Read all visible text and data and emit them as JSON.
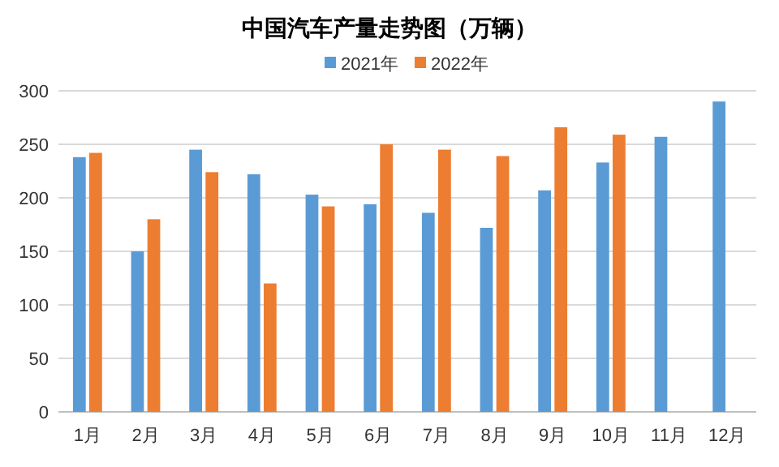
{
  "chart_data": {
    "type": "bar",
    "title": "中国汽车产量走势图（万辆）",
    "categories": [
      "1月",
      "2月",
      "3月",
      "4月",
      "5月",
      "6月",
      "7月",
      "8月",
      "9月",
      "10月",
      "11月",
      "12月"
    ],
    "series": [
      {
        "name": "2021年",
        "color": "#5b9bd5",
        "values": [
          238,
          150,
          245,
          222,
          203,
          194,
          186,
          172,
          207,
          233,
          257,
          290
        ]
      },
      {
        "name": "2022年",
        "color": "#ed7d31",
        "values": [
          242,
          180,
          224,
          120,
          192,
          250,
          245,
          239,
          266,
          259,
          null,
          null
        ]
      }
    ],
    "ylim": [
      0,
      300
    ],
    "yticks": [
      0,
      50,
      100,
      150,
      200,
      250,
      300
    ],
    "grid": "y",
    "legend": "top"
  }
}
